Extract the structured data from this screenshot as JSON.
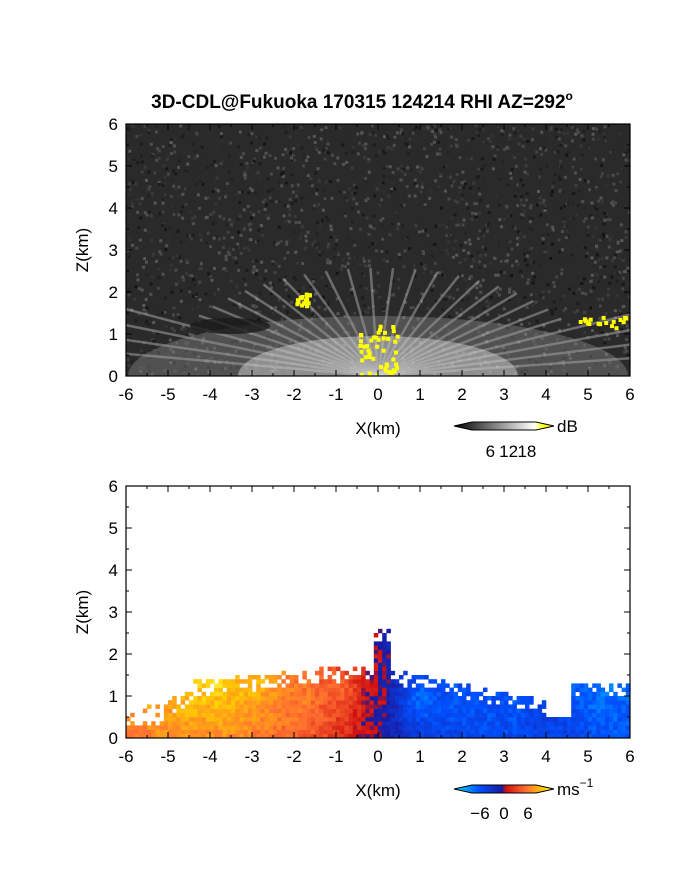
{
  "title": "3D-CDL@Fukuoka 170315 124214 RHI AZ=292",
  "title_degree": "o",
  "chart_data": [
    {
      "type": "heatmap",
      "variable": "backscatter intensity",
      "xlabel": "X(km)",
      "ylabel": "Z(km)",
      "xlim": [
        -6,
        6
      ],
      "ylim": [
        0,
        6
      ],
      "xticks": [
        "-6",
        "-5",
        "-4",
        "-3",
        "-2",
        "-1",
        "0",
        "1",
        "2",
        "3",
        "4",
        "5",
        "6"
      ],
      "yticks": [
        "0",
        "1",
        "2",
        "3",
        "4",
        "5",
        "6"
      ],
      "colorbar": {
        "unit": "dB",
        "ticks": [
          "6",
          "12",
          "18"
        ],
        "range": [
          0,
          21
        ]
      },
      "colormap": [
        "#000000",
        "#3a3a3a",
        "#7a7a7a",
        "#bdbdbd",
        "#f2f2f2",
        "#ffff00"
      ],
      "background_color": "#2a2a2a",
      "features": [
        {
          "x": 0.0,
          "z": 0.4,
          "value": 20
        },
        {
          "x": -1.8,
          "z": 1.85,
          "value": 20
        },
        {
          "x": 5.3,
          "z": 1.3,
          "value": 20
        },
        {
          "x": 0.0,
          "z": 1.0,
          "value": 15
        },
        {
          "x": -3.0,
          "z": 0.9,
          "value": 12
        },
        {
          "x": 3.0,
          "z": 0.9,
          "value": 12
        }
      ]
    },
    {
      "type": "heatmap",
      "variable": "radial velocity",
      "xlabel": "X(km)",
      "ylabel": "Z(km)",
      "xlim": [
        -6,
        6
      ],
      "ylim": [
        0,
        6
      ],
      "xticks": [
        "-6",
        "-5",
        "-4",
        "-3",
        "-2",
        "-1",
        "0",
        "1",
        "2",
        "3",
        "4",
        "5",
        "6"
      ],
      "yticks": [
        "0",
        "1",
        "2",
        "3",
        "4",
        "5",
        "6"
      ],
      "colorbar": {
        "unit": "ms",
        "unit_exponent": "−1",
        "ticks": [
          "−6",
          "0",
          "6"
        ],
        "range": [
          -8,
          8
        ]
      },
      "colormap": [
        "#00e5ff",
        "#0050ff",
        "#1a1aa0",
        "#d01010",
        "#ff7030",
        "#ffd000",
        "#ffff60"
      ],
      "observations": [
        {
          "x": -4.0,
          "z": 1.6,
          "velocity": 7
        },
        {
          "x": -3.0,
          "z": 1.5,
          "velocity": 6
        },
        {
          "x": -2.0,
          "z": 1.0,
          "velocity": 4
        },
        {
          "x": -1.0,
          "z": 1.2,
          "velocity": 3
        },
        {
          "x": -0.1,
          "z": 1.0,
          "velocity": 0
        },
        {
          "x": 1.0,
          "z": 1.0,
          "velocity": -5
        },
        {
          "x": 2.0,
          "z": 0.9,
          "velocity": -4
        },
        {
          "x": 3.0,
          "z": 0.8,
          "velocity": -4
        },
        {
          "x": 4.0,
          "z": 0.6,
          "velocity": -3
        },
        {
          "x": 5.3,
          "z": 1.2,
          "velocity": -5
        }
      ]
    }
  ]
}
